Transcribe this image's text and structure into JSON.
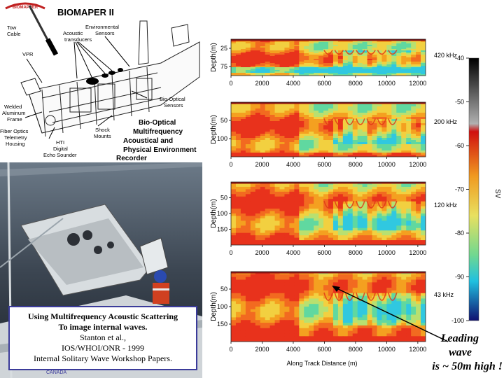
{
  "diagram": {
    "logo_text": "BIOMAPPER",
    "title": "BIOMAPER II",
    "labels": {
      "tow_cable": [
        "Tow",
        "Cable"
      ],
      "acoustic_transducers": [
        "Acoustic",
        "transducers"
      ],
      "environmental_sensors": [
        "Environmental",
        "Sensors"
      ],
      "vpr": "VPR",
      "welded_frame": [
        "Welded",
        "Aluminum",
        "Frame"
      ],
      "bio_optical_sensors": [
        "Bio-Optical",
        "Sensors"
      ],
      "fiber_optics": [
        "Fiber Optics",
        "Telemetry",
        "Housing"
      ],
      "shock_mounts": [
        "Shock",
        "Mounts"
      ],
      "hti": [
        "HTI",
        "Digital",
        "Echo Sounder"
      ],
      "recorder_title": [
        "Bio-Optical",
        "Multifrequency",
        "Acoustical and",
        "Physical Environment",
        "Recorder"
      ]
    }
  },
  "caption": {
    "line1": "Using Multifrequency Acoustic Scattering",
    "line2": "To image internal waves.",
    "line3": "Stanton et al.,",
    "line4": "IOS/WHOI/ONR  - 1999",
    "line5": "Internal Solitary Wave Workshop Papers."
  },
  "footer_logo": "CANADA",
  "annotation": {
    "line1": "Leading",
    "line2": "wave",
    "line3": "is ~ 50m high !"
  },
  "colors": {
    "caption_border": "#3b3b9a",
    "red": "#e03018",
    "orange": "#f0a020",
    "yellow": "#f0e040",
    "green": "#90e080",
    "cyan": "#30d0e0",
    "blue": "#1830a0"
  },
  "chart_data": {
    "type": "heatmap",
    "xlabel": "Along Track Distance (m)",
    "colorbar": {
      "label": "SV",
      "min": -100,
      "max": -40,
      "ticks": [
        -40,
        -50,
        -60,
        -70,
        -80,
        -90,
        -100
      ]
    },
    "panels": [
      {
        "frequency": "420 kHz",
        "ylabel": "Depth(m)",
        "ylim": [
          0,
          100
        ],
        "yticks": [
          25,
          75
        ],
        "xlim": [
          0,
          12500
        ],
        "xticks": [
          0,
          2000,
          4000,
          6000,
          8000,
          10000,
          12000
        ]
      },
      {
        "frequency": "200 kHz",
        "ylabel": "Depth(m)",
        "ylim": [
          0,
          150
        ],
        "yticks": [
          50,
          100
        ],
        "xlim": [
          0,
          12500
        ],
        "xticks": [
          0,
          2000,
          4000,
          6000,
          8000,
          10000,
          12000
        ]
      },
      {
        "frequency": "120 kHz",
        "ylabel": "Depth(m)",
        "ylim": [
          0,
          200
        ],
        "yticks": [
          50,
          100,
          150
        ],
        "xlim": [
          0,
          12500
        ],
        "xticks": [
          0,
          2000,
          4000,
          6000,
          8000,
          10000,
          12000
        ]
      },
      {
        "frequency": "43 kHz",
        "ylabel": "Depth(m)",
        "ylim": [
          0,
          200
        ],
        "yticks": [
          50,
          100,
          150
        ],
        "xlim": [
          0,
          12500
        ],
        "xticks": [
          0,
          2000,
          4000,
          6000,
          8000,
          10000,
          12000
        ]
      }
    ]
  }
}
